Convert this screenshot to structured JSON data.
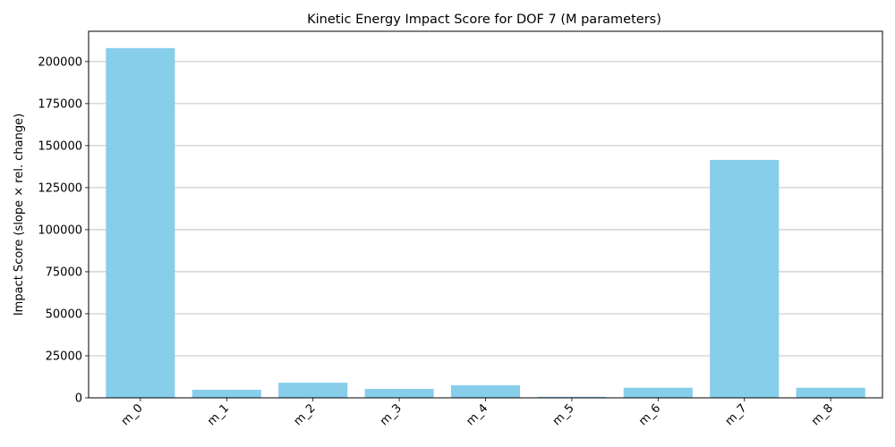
{
  "chart_data": {
    "type": "bar",
    "title": "Kinetic Energy Impact Score for DOF 7 (M parameters)",
    "xlabel": "",
    "ylabel": "Impact Score (slope × rel. change)",
    "categories": [
      "m_0",
      "m_1",
      "m_2",
      "m_3",
      "m_4",
      "m_5",
      "m_6",
      "m_7",
      "m_8"
    ],
    "values": [
      208000,
      4800,
      9000,
      5300,
      7500,
      600,
      6000,
      141500,
      6000
    ],
    "ylim": [
      0,
      218000
    ],
    "yticks": [
      0,
      25000,
      50000,
      75000,
      100000,
      125000,
      150000,
      175000,
      200000
    ],
    "ytick_labels": [
      "0",
      "25000",
      "50000",
      "75000",
      "100000",
      "125000",
      "150000",
      "175000",
      "200000"
    ],
    "grid": "y",
    "bar_color": "#87ceeb",
    "x_tick_rotation": 45
  }
}
